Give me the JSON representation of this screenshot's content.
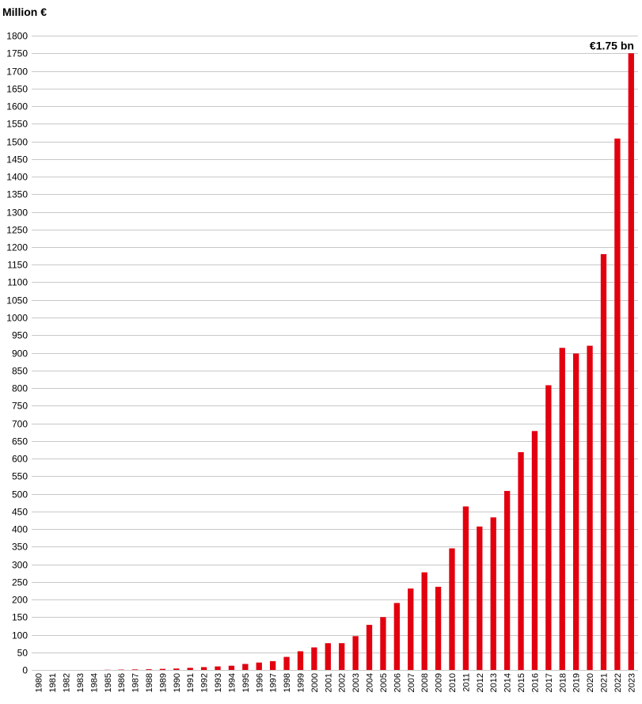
{
  "chart_data": {
    "type": "bar",
    "title": "",
    "ylabel": "Million €",
    "xlabel": "",
    "ylim": [
      0,
      1800
    ],
    "y_tick_step": 50,
    "grid": true,
    "bar_color": "#e2000f",
    "categories": [
      "1980",
      "1981",
      "1982",
      "1983",
      "1984",
      "1985",
      "1986",
      "1987",
      "1988",
      "1989",
      "1990",
      "1991",
      "1992",
      "1993",
      "1994",
      "1995",
      "1996",
      "1997",
      "1998",
      "1999",
      "2000",
      "2001",
      "2002",
      "2003",
      "2004",
      "2005",
      "2006",
      "2007",
      "2008",
      "2009",
      "2010",
      "2011",
      "2012",
      "2013",
      "2014",
      "2015",
      "2016",
      "2017",
      "2018",
      "2019",
      "2020",
      "2021",
      "2022",
      "2023"
    ],
    "values": [
      0,
      0,
      0,
      0,
      0,
      0.5,
      1,
      1.5,
      2,
      3,
      4,
      6,
      8,
      10,
      12,
      17,
      21,
      25,
      37,
      53,
      64,
      76,
      76,
      96,
      128,
      150,
      190,
      231,
      277,
      236,
      345,
      464,
      407,
      433,
      508,
      618,
      678,
      808,
      914,
      898,
      920,
      1180,
      1508,
      1750
    ],
    "annotations": [
      {
        "category": "2023",
        "text": "€1.75 bn"
      }
    ]
  }
}
